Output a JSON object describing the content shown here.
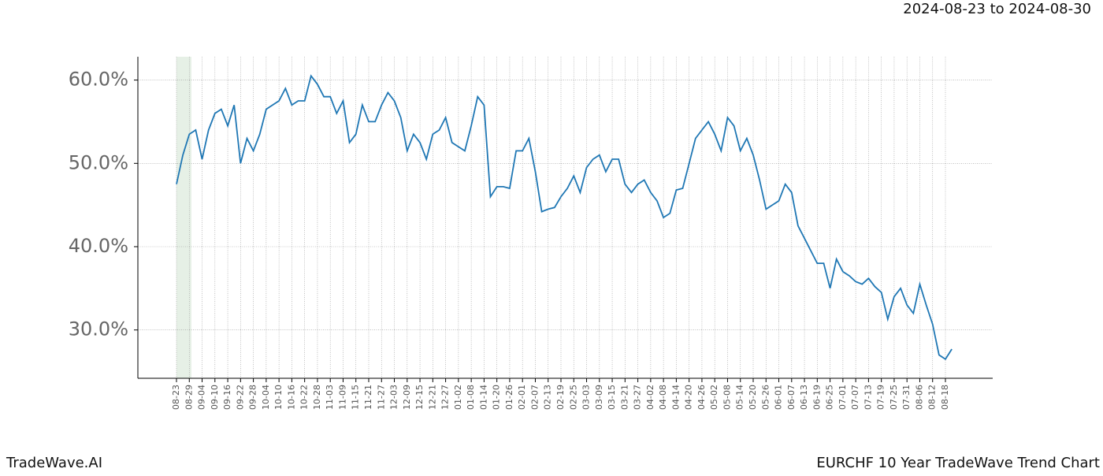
{
  "header": {
    "date_range": "2024-08-23 to 2024-08-30"
  },
  "footer": {
    "brand": "TradeWave.AI",
    "chart_name": "EURCHF 10 Year TradeWave Trend Chart"
  },
  "chart_data": {
    "type": "line",
    "x": [
      "08-23",
      "08-26",
      "08-29",
      "09-01",
      "09-04",
      "09-07",
      "09-10",
      "09-13",
      "09-16",
      "09-19",
      "09-22",
      "09-25",
      "09-28",
      "10-01",
      "10-04",
      "10-07",
      "10-10",
      "10-13",
      "10-16",
      "10-19",
      "10-22",
      "10-25",
      "10-28",
      "10-31",
      "11-03",
      "11-06",
      "11-09",
      "11-12",
      "11-15",
      "11-18",
      "11-21",
      "11-24",
      "11-27",
      "11-30",
      "12-03",
      "12-06",
      "12-09",
      "12-12",
      "12-15",
      "12-18",
      "12-21",
      "12-24",
      "12-27",
      "12-30",
      "01-02",
      "01-05",
      "01-08",
      "01-11",
      "01-14",
      "01-17",
      "01-20",
      "01-23",
      "01-26",
      "01-29",
      "02-01",
      "02-04",
      "02-07",
      "02-10",
      "02-13",
      "02-16",
      "02-19",
      "02-22",
      "02-25",
      "02-28",
      "03-03",
      "03-06",
      "03-09",
      "03-12",
      "03-15",
      "03-18",
      "03-21",
      "03-24",
      "03-27",
      "03-30",
      "04-02",
      "04-05",
      "04-08",
      "04-11",
      "04-14",
      "04-17",
      "04-20",
      "04-23",
      "04-26",
      "04-29",
      "05-02",
      "05-05",
      "05-08",
      "05-11",
      "05-14",
      "05-17",
      "05-20",
      "05-23",
      "05-26",
      "05-29",
      "06-01",
      "06-04",
      "06-07",
      "06-10",
      "06-13",
      "06-16",
      "06-19",
      "06-22",
      "06-25",
      "06-28",
      "07-01",
      "07-04",
      "07-07",
      "07-10",
      "07-13",
      "07-16",
      "07-19",
      "07-22",
      "07-25",
      "07-28",
      "07-31",
      "08-03",
      "08-06",
      "08-09",
      "08-12",
      "08-15",
      "08-18",
      "08-21"
    ],
    "series": [
      {
        "name": "EURCHF",
        "color": "#1f77b4",
        "values": [
          47.5,
          51,
          53.5,
          54,
          50.5,
          54,
          56,
          56.5,
          54.5,
          57,
          50,
          53,
          51.5,
          53.5,
          56.5,
          57,
          57.5,
          59,
          57,
          57.5,
          57.5,
          60.5,
          59.5,
          58,
          58,
          56,
          57.5,
          52.5,
          53.5,
          57,
          55,
          55,
          57,
          58.5,
          57.5,
          55.5,
          51.5,
          53.5,
          52.5,
          50.5,
          53.5,
          54,
          55.5,
          52.5,
          52,
          51.5,
          54.5,
          58,
          57,
          46,
          47.2,
          47.2,
          47,
          51.5,
          51.5,
          53,
          49,
          44.2,
          44.5,
          44.7,
          46,
          47,
          48.5,
          46.5,
          49.5,
          50.5,
          51,
          49,
          50.5,
          50.5,
          47.5,
          46.5,
          47.5,
          48,
          46.5,
          45.5,
          43.5,
          44,
          46.8,
          47,
          50,
          53,
          54,
          55,
          53.5,
          51.5,
          55.5,
          54.5,
          51.5,
          53,
          51,
          48,
          44.5,
          45,
          45.5,
          47.5,
          46.5,
          42.5,
          41,
          39.5,
          38,
          38,
          35,
          38.5,
          37,
          36.5,
          35.8,
          35.5,
          36.2,
          35.2,
          34.5,
          31.3,
          34,
          35,
          33,
          32,
          35.5,
          33,
          30.7,
          27,
          26.5,
          27.7
        ]
      }
    ],
    "xticks": [
      "08-23",
      "08-29",
      "09-04",
      "09-10",
      "09-16",
      "09-22",
      "09-28",
      "10-04",
      "10-10",
      "10-16",
      "10-22",
      "10-28",
      "11-03",
      "11-09",
      "11-15",
      "11-21",
      "11-27",
      "12-03",
      "12-09",
      "12-15",
      "12-21",
      "12-27",
      "01-02",
      "01-08",
      "01-14",
      "01-20",
      "01-26",
      "02-01",
      "02-07",
      "02-13",
      "02-19",
      "02-25",
      "03-03",
      "03-09",
      "03-15",
      "03-21",
      "03-27",
      "04-02",
      "04-08",
      "04-14",
      "04-20",
      "04-26",
      "05-02",
      "05-08",
      "05-14",
      "05-20",
      "05-26",
      "06-01",
      "06-07",
      "06-13",
      "06-19",
      "06-25",
      "07-01",
      "07-07",
      "07-13",
      "07-19",
      "07-25",
      "07-31",
      "08-06",
      "08-12",
      "08-18"
    ],
    "ylim": [
      24.2,
      62.8
    ],
    "yticks": [
      {
        "value": 30,
        "label": "30.0%"
      },
      {
        "value": 40,
        "label": "40.0%"
      },
      {
        "value": 50,
        "label": "50.0%"
      },
      {
        "value": 60,
        "label": "60.0%"
      }
    ],
    "grid": true
  }
}
